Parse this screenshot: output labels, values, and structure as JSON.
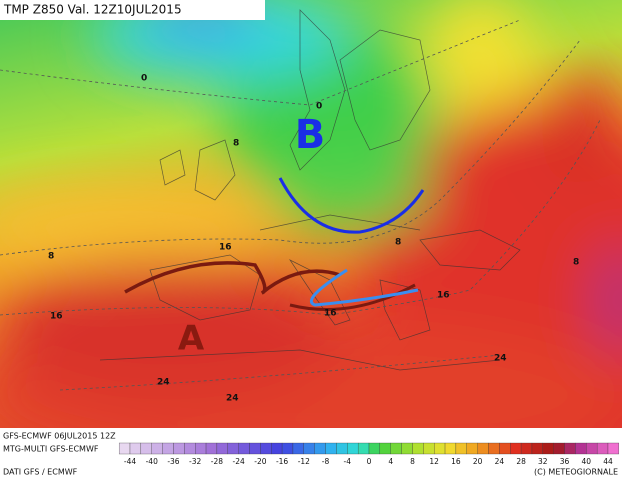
{
  "header": {
    "title": "TMP Z850 Val. 12Z10JUL2015"
  },
  "map": {
    "pressure_labels": [
      "B",
      "A"
    ],
    "isotherm_labels": [
      "0",
      "0",
      "8",
      "8",
      "8",
      "16",
      "8",
      "16",
      "16",
      "16",
      "24",
      "24",
      "24"
    ]
  },
  "footer": {
    "run": "GFS-ECMWF 06JUL2015 12Z",
    "model": "MTG-MULTI GFS-ECMWF",
    "source": "DATI GFS / ECMWF",
    "copyright": "(C) METEOGIORNALE"
  },
  "legend": {
    "ticks": [
      -44,
      -40,
      -36,
      -32,
      -28,
      -24,
      -20,
      -16,
      -12,
      -8,
      -4,
      0,
      4,
      8,
      12,
      16,
      20,
      24,
      28,
      32,
      36,
      40,
      44
    ]
  }
}
